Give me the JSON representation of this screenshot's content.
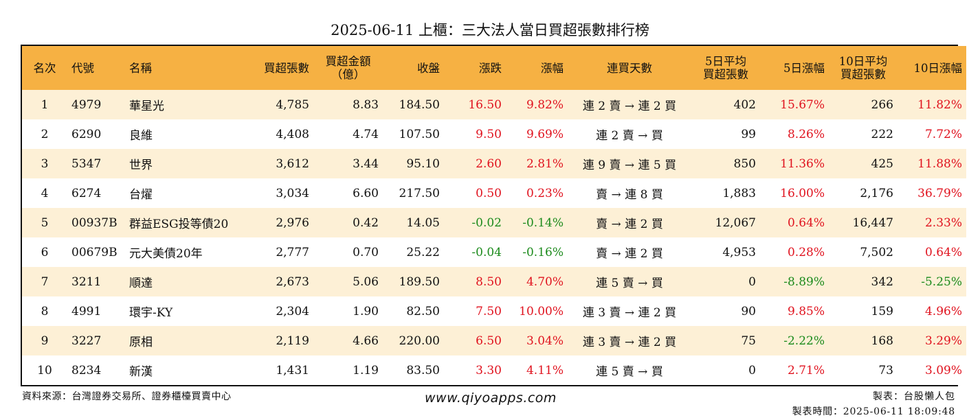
{
  "title": "2025-06-11 上櫃：三大法人當日買超張數排行榜",
  "headers": {
    "rank": "名次",
    "code": "代號",
    "name": "名稱",
    "buy_shares": "買超張數",
    "buy_amount_1": "買超金額",
    "buy_amount_2": "（億）",
    "close": "收盤",
    "change": "漲跌",
    "change_pct": "漲幅",
    "streak": "連買天數",
    "avg5_1": "5日平均",
    "avg5_2": "買超張數",
    "pct5": "5日漲幅",
    "avg10_1": "10日平均",
    "avg10_2": "買超張數",
    "pct10": "10日漲幅"
  },
  "colors": {
    "header_bg": "#f6b143",
    "odd_row": "#fdf0d6",
    "up": "#e0121e",
    "down": "#1b8a1b"
  },
  "rows": [
    {
      "rank": "1",
      "code": "4979",
      "name": "華星光",
      "buy_shares": "4,785",
      "buy_amount": "8.83",
      "close": "184.50",
      "change": "16.50",
      "change_pct": "9.82%",
      "streak": "連 2 賣 → 連 2 買",
      "avg5": "402",
      "pct5": "15.67%",
      "avg10": "266",
      "pct10": "11.82%"
    },
    {
      "rank": "2",
      "code": "6290",
      "name": "良維",
      "buy_shares": "4,408",
      "buy_amount": "4.74",
      "close": "107.50",
      "change": "9.50",
      "change_pct": "9.69%",
      "streak": "連 2 賣 → 買",
      "avg5": "99",
      "pct5": "8.26%",
      "avg10": "222",
      "pct10": "7.72%"
    },
    {
      "rank": "3",
      "code": "5347",
      "name": "世界",
      "buy_shares": "3,612",
      "buy_amount": "3.44",
      "close": "95.10",
      "change": "2.60",
      "change_pct": "2.81%",
      "streak": "連 9 賣 → 連 5 買",
      "avg5": "850",
      "pct5": "11.36%",
      "avg10": "425",
      "pct10": "11.88%"
    },
    {
      "rank": "4",
      "code": "6274",
      "name": "台燿",
      "buy_shares": "3,034",
      "buy_amount": "6.60",
      "close": "217.50",
      "change": "0.50",
      "change_pct": "0.23%",
      "streak": "賣 → 連 8 買",
      "avg5": "1,883",
      "pct5": "16.00%",
      "avg10": "2,176",
      "pct10": "36.79%"
    },
    {
      "rank": "5",
      "code": "00937B",
      "name": "群益ESG投等債20",
      "buy_shares": "2,976",
      "buy_amount": "0.42",
      "close": "14.05",
      "change": "-0.02",
      "change_pct": "-0.14%",
      "streak": "賣 → 連 2 買",
      "avg5": "12,067",
      "pct5": "0.64%",
      "avg10": "16,447",
      "pct10": "2.33%"
    },
    {
      "rank": "6",
      "code": "00679B",
      "name": "元大美債20年",
      "buy_shares": "2,777",
      "buy_amount": "0.70",
      "close": "25.22",
      "change": "-0.04",
      "change_pct": "-0.16%",
      "streak": "賣 → 連 2 買",
      "avg5": "4,953",
      "pct5": "0.28%",
      "avg10": "7,502",
      "pct10": "0.64%"
    },
    {
      "rank": "7",
      "code": "3211",
      "name": "順達",
      "buy_shares": "2,673",
      "buy_amount": "5.06",
      "close": "189.50",
      "change": "8.50",
      "change_pct": "4.70%",
      "streak": "連 5 賣 → 買",
      "avg5": "0",
      "pct5": "-8.89%",
      "avg10": "342",
      "pct10": "-5.25%"
    },
    {
      "rank": "8",
      "code": "4991",
      "name": "環宇-KY",
      "buy_shares": "2,304",
      "buy_amount": "1.90",
      "close": "82.50",
      "change": "7.50",
      "change_pct": "10.00%",
      "streak": "連 3 賣 → 連 2 買",
      "avg5": "90",
      "pct5": "9.85%",
      "avg10": "159",
      "pct10": "4.96%"
    },
    {
      "rank": "9",
      "code": "3227",
      "name": "原相",
      "buy_shares": "2,119",
      "buy_amount": "4.66",
      "close": "220.00",
      "change": "6.50",
      "change_pct": "3.04%",
      "streak": "連 3 賣 → 連 2 買",
      "avg5": "75",
      "pct5": "-2.22%",
      "avg10": "168",
      "pct10": "3.29%"
    },
    {
      "rank": "10",
      "code": "8234",
      "name": "新漢",
      "buy_shares": "1,431",
      "buy_amount": "1.19",
      "close": "83.50",
      "change": "3.30",
      "change_pct": "4.11%",
      "streak": "連 5 賣 → 買",
      "avg5": "0",
      "pct5": "2.71%",
      "avg10": "73",
      "pct10": "3.09%"
    }
  ],
  "footer": {
    "source": "資料來源：台灣證券交易所、證券櫃檯買賣中心",
    "website": "www.qiyoapps.com",
    "author": "製表：台股懶人包",
    "timestamp": "製表時間：2025-06-11 18:09:48"
  }
}
